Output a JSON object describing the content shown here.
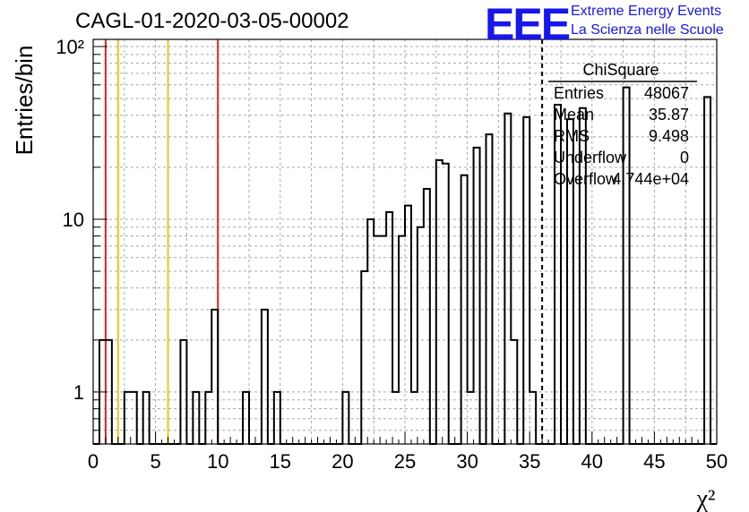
{
  "header": {
    "title": "CAGL-01-2020-03-05-00002",
    "logo_mark": "EEE",
    "logo_line1": "Extreme Energy Events",
    "logo_line2": "La Scienza nelle Scuole"
  },
  "stats": {
    "title": "ChiSquare",
    "rows": [
      {
        "label": "Entries",
        "value": "48067"
      },
      {
        "label": "Mean",
        "value": "35.87"
      },
      {
        "label": "RMS",
        "value": "9.498"
      },
      {
        "label": "Underflow",
        "value": "0"
      },
      {
        "label": "Overflow",
        "value": "4.744e+04"
      }
    ]
  },
  "colors": {
    "red_line": "#e8231c",
    "yellow_line": "#f3c11b",
    "histogram": "#000000",
    "logo": "#1616ee"
  },
  "chart_data": {
    "type": "histogram",
    "xlabel": "χ²",
    "ylabel": "Entries/bin",
    "x_range": [
      0,
      50
    ],
    "y_range": [
      0.5,
      110
    ],
    "y_scale": "log",
    "grid": true,
    "x_ticks": [
      "0",
      "5",
      "10",
      "15",
      "20",
      "25",
      "30",
      "35",
      "40",
      "45",
      "50"
    ],
    "y_ticks": [
      {
        "value": 1,
        "label": "1"
      },
      {
        "value": 10,
        "label": "10"
      },
      {
        "value": 100,
        "label": "10²"
      }
    ],
    "bin_width": 0.5,
    "counts": [
      0,
      2,
      2,
      0,
      0,
      1,
      1,
      0,
      1,
      0,
      0,
      0,
      0,
      0,
      2,
      0,
      1,
      0,
      1,
      3,
      0,
      0,
      0,
      0,
      1,
      0,
      0,
      3,
      0,
      1,
      0,
      0,
      0,
      0,
      0,
      0,
      0,
      0,
      0,
      0,
      1,
      0,
      0,
      5,
      10,
      8,
      8,
      11,
      1,
      8,
      12,
      1,
      9,
      15,
      0,
      22,
      21,
      0,
      0,
      18,
      1,
      26,
      0,
      31,
      0,
      0,
      41,
      2,
      0,
      39,
      1,
      0,
      0,
      0,
      46,
      0,
      38,
      0,
      44,
      0,
      0,
      0,
      0,
      0,
      0,
      58,
      0,
      0,
      0,
      0,
      0,
      0,
      0,
      0,
      0,
      0,
      0,
      0,
      51,
      0
    ],
    "vertical_lines": [
      {
        "x": 1,
        "color": "red"
      },
      {
        "x": 2,
        "color": "yellow"
      },
      {
        "x": 6,
        "color": "yellow"
      },
      {
        "x": 10,
        "color": "red"
      },
      {
        "x": 36,
        "color": "black-dashed"
      }
    ]
  }
}
